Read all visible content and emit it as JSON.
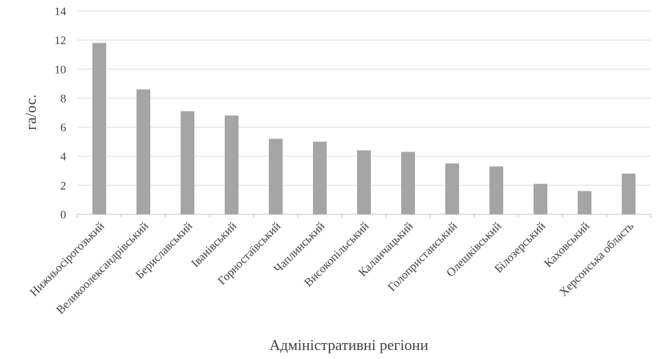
{
  "chart_data": {
    "type": "bar",
    "title": "",
    "xlabel": "Адміністративні регіони",
    "ylabel": "га/ос.",
    "ylim": [
      0,
      14
    ],
    "yticks": [
      0,
      2,
      4,
      6,
      8,
      10,
      12,
      14
    ],
    "grid": true,
    "legend": "none",
    "bar_color": "#a5a5a5",
    "categories": [
      "Нижньосірогозький",
      "Великоолександрівський",
      "Бериславський",
      "Іванівський",
      "Горностаївський",
      "Чаплинський",
      "Високопільський",
      "Каланчацький",
      "Голопристанський",
      "Олешківський",
      "Білозерський",
      "Каховський",
      "Херсонська область"
    ],
    "values": [
      11.8,
      8.6,
      7.1,
      6.8,
      5.2,
      5.0,
      4.4,
      4.3,
      3.5,
      3.3,
      2.1,
      1.6,
      2.8
    ]
  }
}
